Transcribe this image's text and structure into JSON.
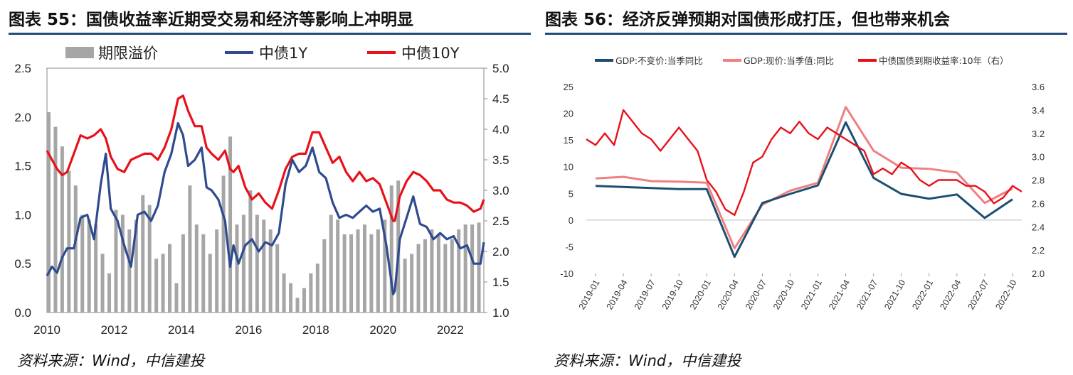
{
  "left": {
    "title": "图表  55：国债收益率近期受交易和经济等影响上冲明显",
    "source": "资料来源：Wind，中信建投",
    "chart_data": {
      "type": "line",
      "legend": [
        "期限溢价",
        "中债1Y",
        "中债10Y"
      ],
      "legend_position": "top",
      "colors": {
        "spread": "#a6a6a6",
        "y1": "#2f4b8f",
        "y10": "#e8111a"
      },
      "x_ticks": [
        "2010",
        "2012",
        "2014",
        "2016",
        "2018",
        "2020",
        "2022"
      ],
      "x_range": [
        2010.0,
        2023.0
      ],
      "y_left_range": [
        0,
        2.5
      ],
      "y_left_ticks": [
        "2.5",
        "2.0",
        "1.5",
        "1.0",
        "0.5",
        "0.0"
      ],
      "y_right_range": [
        1.0,
        5.0
      ],
      "y_right_ticks": [
        "5.0",
        "4.5",
        "4.0",
        "3.5",
        "3.0",
        "2.5",
        "2.0",
        "1.5",
        "1.0"
      ],
      "series": [
        {
          "name": "期限溢价",
          "axis": "left",
          "kind": "bar",
          "x": [
            2010.0,
            2010.2,
            2010.4,
            2010.6,
            2010.8,
            2011.0,
            2011.2,
            2011.4,
            2011.6,
            2011.8,
            2012.0,
            2012.2,
            2012.4,
            2012.6,
            2012.8,
            2013.0,
            2013.2,
            2013.4,
            2013.6,
            2013.8,
            2014.0,
            2014.2,
            2014.4,
            2014.6,
            2014.8,
            2015.0,
            2015.2,
            2015.4,
            2015.6,
            2015.8,
            2016.0,
            2016.2,
            2016.4,
            2016.6,
            2016.8,
            2017.0,
            2017.2,
            2017.4,
            2017.6,
            2017.8,
            2018.0,
            2018.2,
            2018.4,
            2018.6,
            2018.8,
            2019.0,
            2019.2,
            2019.4,
            2019.6,
            2019.8,
            2020.0,
            2020.2,
            2020.4,
            2020.6,
            2020.8,
            2021.0,
            2021.2,
            2021.4,
            2021.6,
            2021.8,
            2022.0,
            2022.2,
            2022.4,
            2022.6,
            2022.8
          ],
          "values": [
            2.05,
            1.9,
            1.7,
            1.45,
            1.3,
            1.0,
            0.95,
            0.9,
            0.6,
            0.4,
            1.05,
            1.0,
            0.85,
            0.95,
            1.2,
            1.1,
            0.55,
            0.6,
            0.7,
            0.3,
            0.8,
            1.3,
            0.9,
            0.8,
            0.6,
            0.85,
            1.4,
            1.8,
            0.9,
            1.0,
            1.25,
            1.0,
            0.95,
            0.85,
            0.7,
            0.4,
            0.3,
            0.15,
            0.25,
            0.4,
            0.5,
            0.75,
            1.0,
            0.95,
            0.8,
            0.8,
            0.85,
            0.9,
            0.8,
            0.85,
            0.95,
            1.3,
            1.35,
            0.55,
            0.6,
            0.7,
            0.75,
            0.85,
            0.8,
            0.7,
            0.75,
            0.85,
            0.9,
            0.9,
            0.92
          ]
        },
        {
          "name": "中债1Y",
          "axis": "right",
          "x": [
            2010.0,
            2010.15,
            2010.3,
            2010.45,
            2010.6,
            2010.8,
            2011.0,
            2011.2,
            2011.4,
            2011.6,
            2011.75,
            2011.9,
            2012.1,
            2012.3,
            2012.5,
            2012.7,
            2012.9,
            2013.1,
            2013.3,
            2013.5,
            2013.7,
            2013.9,
            2014.05,
            2014.2,
            2014.4,
            2014.6,
            2014.75,
            2014.9,
            2015.1,
            2015.3,
            2015.45,
            2015.55,
            2015.7,
            2015.9,
            2016.1,
            2016.3,
            2016.5,
            2016.7,
            2016.9,
            2017.1,
            2017.3,
            2017.5,
            2017.7,
            2017.9,
            2018.1,
            2018.3,
            2018.5,
            2018.7,
            2018.9,
            2019.1,
            2019.3,
            2019.5,
            2019.7,
            2019.9,
            2020.1,
            2020.3,
            2020.35,
            2020.5,
            2020.7,
            2020.9,
            2021.1,
            2021.3,
            2021.5,
            2021.7,
            2021.9,
            2022.1,
            2022.3,
            2022.5,
            2022.7,
            2022.9,
            2023.0
          ],
          "values": [
            1.6,
            1.75,
            1.65,
            1.9,
            2.05,
            2.05,
            2.55,
            2.6,
            2.2,
            3.1,
            3.6,
            2.7,
            2.5,
            2.1,
            1.75,
            2.6,
            2.65,
            2.5,
            2.75,
            3.3,
            3.6,
            4.1,
            3.9,
            3.4,
            3.5,
            3.7,
            3.05,
            3.0,
            2.85,
            2.5,
            1.75,
            2.1,
            1.8,
            2.1,
            2.2,
            2.0,
            2.15,
            2.1,
            2.3,
            3.1,
            3.5,
            3.3,
            3.4,
            3.7,
            3.3,
            3.2,
            2.8,
            2.55,
            2.6,
            2.55,
            2.65,
            2.75,
            2.65,
            2.7,
            2.1,
            1.3,
            1.35,
            2.2,
            2.55,
            2.9,
            2.45,
            2.4,
            2.2,
            2.3,
            2.2,
            2.25,
            2.05,
            2.1,
            1.8,
            1.8,
            2.15
          ]
        },
        {
          "name": "中债10Y",
          "axis": "right",
          "x": [
            2010.0,
            2010.15,
            2010.3,
            2010.45,
            2010.6,
            2010.8,
            2011.0,
            2011.2,
            2011.4,
            2011.6,
            2011.75,
            2011.9,
            2012.1,
            2012.3,
            2012.5,
            2012.7,
            2012.9,
            2013.1,
            2013.3,
            2013.5,
            2013.7,
            2013.9,
            2014.05,
            2014.2,
            2014.4,
            2014.6,
            2014.75,
            2014.9,
            2015.1,
            2015.3,
            2015.45,
            2015.55,
            2015.7,
            2015.9,
            2016.1,
            2016.3,
            2016.5,
            2016.7,
            2016.9,
            2017.1,
            2017.3,
            2017.5,
            2017.7,
            2017.9,
            2018.1,
            2018.3,
            2018.5,
            2018.7,
            2018.9,
            2019.1,
            2019.3,
            2019.5,
            2019.7,
            2019.9,
            2020.1,
            2020.3,
            2020.35,
            2020.5,
            2020.7,
            2020.9,
            2021.1,
            2021.3,
            2021.5,
            2021.7,
            2021.9,
            2022.1,
            2022.3,
            2022.5,
            2022.7,
            2022.9,
            2023.0
          ],
          "values": [
            3.65,
            3.5,
            3.35,
            3.25,
            3.3,
            3.6,
            3.9,
            3.85,
            3.9,
            4.0,
            3.85,
            3.55,
            3.35,
            3.3,
            3.5,
            3.55,
            3.6,
            3.6,
            3.5,
            3.7,
            4.0,
            4.5,
            4.55,
            4.3,
            4.05,
            4.05,
            3.7,
            3.6,
            3.5,
            3.65,
            3.35,
            3.3,
            3.4,
            3.05,
            2.85,
            2.95,
            2.8,
            2.7,
            3.0,
            3.35,
            3.55,
            3.6,
            3.6,
            3.95,
            3.95,
            3.7,
            3.45,
            3.55,
            3.3,
            3.15,
            3.3,
            3.15,
            3.2,
            3.1,
            2.8,
            2.5,
            2.5,
            2.9,
            3.15,
            3.3,
            3.25,
            3.15,
            3.0,
            3.0,
            2.85,
            2.8,
            2.8,
            2.75,
            2.65,
            2.7,
            2.85
          ]
        }
      ]
    }
  },
  "right": {
    "title": "图表  56：经济反弹预期对国债形成打压，但也带来机会",
    "source": "资料来源：Wind，中信建投",
    "chart_data": {
      "type": "line",
      "legend": [
        "GDP:不变价:当季同比",
        "GDP:现价:当季值:同比",
        "中债国债到期收益率:10年（右）"
      ],
      "legend_position": "top",
      "colors": {
        "real": "#1a4f72",
        "nominal": "#f08080",
        "yield": "#e8111a"
      },
      "x_ticks": [
        "2019-01",
        "2019-04",
        "2019-07",
        "2019-10",
        "2020-01",
        "2020-04",
        "2020-07",
        "2020-10",
        "2021-01",
        "2021-04",
        "2021-07",
        "2021-10",
        "2022-01",
        "2022-04",
        "2022-07",
        "2022-10"
      ],
      "y_left_range": [
        -10,
        25
      ],
      "y_left_ticks": [
        "25",
        "20",
        "15",
        "10",
        "5",
        "0",
        "-5",
        "-10"
      ],
      "y_right_range": [
        2.0,
        3.6
      ],
      "y_right_ticks": [
        "3.6",
        "3.4",
        "3.2",
        "3.0",
        "2.8",
        "2.6",
        "2.4",
        "2.2",
        "2.0"
      ],
      "series": [
        {
          "name": "GDP:不变价:当季同比",
          "axis": "left",
          "x": [
            1,
            4,
            7,
            10,
            13,
            16,
            19,
            22,
            25,
            28,
            31,
            34,
            37,
            40,
            43,
            46
          ],
          "values": [
            6.4,
            6.2,
            6.0,
            5.8,
            5.8,
            -6.9,
            3.2,
            4.9,
            6.5,
            18.3,
            7.9,
            4.9,
            4.0,
            4.8,
            0.4,
            3.9
          ]
        },
        {
          "name": "GDP:现价:当季值:同比",
          "axis": "left",
          "x": [
            1,
            4,
            7,
            10,
            13,
            16,
            19,
            22,
            25,
            28,
            31,
            34,
            37,
            40,
            43,
            46
          ],
          "values": [
            7.8,
            8.1,
            7.3,
            7.2,
            7.0,
            -5.3,
            2.9,
            5.5,
            7.0,
            21.2,
            13.0,
            9.8,
            9.6,
            8.9,
            3.2,
            5.9
          ]
        },
        {
          "name": "中债国债到期收益率:10年（右）",
          "axis": "right",
          "x": [
            0,
            1,
            2,
            3,
            4,
            5,
            6,
            7,
            8,
            9,
            10,
            11,
            12,
            13,
            14,
            15,
            16,
            17,
            18,
            19,
            20,
            21,
            22,
            23,
            24,
            25,
            26,
            27,
            28,
            29,
            30,
            31,
            32,
            33,
            34,
            35,
            36,
            37,
            38,
            39,
            40,
            41,
            42,
            43,
            44,
            45,
            46,
            47
          ],
          "values": [
            3.15,
            3.1,
            3.2,
            3.1,
            3.4,
            3.3,
            3.2,
            3.15,
            3.05,
            3.15,
            3.25,
            3.15,
            3.05,
            2.8,
            2.7,
            2.55,
            2.5,
            2.7,
            2.95,
            3.0,
            3.15,
            3.25,
            3.2,
            3.3,
            3.2,
            3.15,
            3.25,
            3.2,
            3.15,
            3.1,
            3.05,
            2.85,
            2.9,
            2.85,
            2.95,
            2.9,
            2.8,
            2.75,
            2.8,
            2.8,
            2.8,
            2.75,
            2.75,
            2.7,
            2.6,
            2.65,
            2.75,
            2.7
          ]
        }
      ]
    }
  }
}
